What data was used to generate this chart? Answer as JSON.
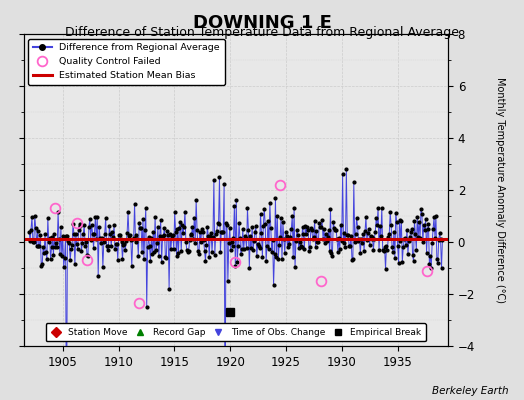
{
  "title": "DOWNING 1 E",
  "subtitle": "Difference of Station Temperature Data from Regional Average",
  "ylabel": "Monthly Temperature Anomaly Difference (°C)",
  "xlabel_credit": "Berkeley Earth",
  "xlim": [
    1901.5,
    1939.5
  ],
  "ylim": [
    -4,
    8
  ],
  "yticks": [
    -4,
    -2,
    0,
    2,
    4,
    6,
    8
  ],
  "xticks": [
    1905,
    1910,
    1915,
    1920,
    1925,
    1930,
    1935
  ],
  "bias_value": 0.1,
  "background_color": "#e0e0e0",
  "plot_bg_color": "#e8e8e8",
  "line_color": "#4444dd",
  "bias_color": "#cc0000",
  "qc_color": "#ff66cc",
  "title_fontsize": 13,
  "subtitle_fontsize": 9,
  "seed": 42,
  "empirical_break_year": 1920.0,
  "empirical_break_value": -2.7,
  "qc_failed_points": [
    [
      1904.3,
      1.3
    ],
    [
      1906.3,
      0.75
    ],
    [
      1907.2,
      -0.7
    ],
    [
      1911.8,
      -2.35
    ],
    [
      1920.4,
      -0.75
    ],
    [
      1924.5,
      2.2
    ],
    [
      1928.1,
      -1.5
    ],
    [
      1937.6,
      -1.1
    ]
  ],
  "years_start": 1902.0,
  "years_end": 1939.0
}
